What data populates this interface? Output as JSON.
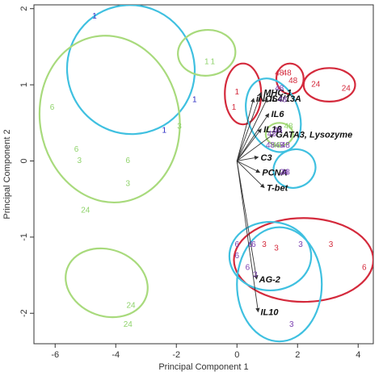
{
  "chart_data": {
    "type": "scatter",
    "title": "",
    "xlabel": "Principal Component 1",
    "ylabel": "Principal Component 2",
    "xlim": [
      -6.7,
      4.5
    ],
    "ylim": [
      -2.4,
      2.05
    ],
    "xticks": [
      -6,
      -4,
      -2,
      0,
      2,
      4
    ],
    "yticks": [
      -2,
      -1,
      0,
      1,
      2
    ],
    "grid": false,
    "colors": {
      "1": "#2b2bc4",
      "3": "#8fd36b",
      "6": "#8fd36b",
      "24": "#8fd36b",
      "48": "#7a3fb0",
      "red": "#d42a3c",
      "cyan": "#3fc0e0",
      "green": "#a8da7c",
      "arrow": "#333333"
    },
    "points": [
      {
        "x": -4.7,
        "y": 1.9,
        "label": "1",
        "color": "#2b2bc4"
      },
      {
        "x": -1.4,
        "y": 0.8,
        "label": "1",
        "color": "#2b2bc4"
      },
      {
        "x": -2.4,
        "y": 0.4,
        "label": "1",
        "color": "#2b2bc4"
      },
      {
        "x": -1.0,
        "y": 1.3,
        "label": "1",
        "color": "#8fd36b"
      },
      {
        "x": -0.8,
        "y": 1.3,
        "label": "1",
        "color": "#8fd36b"
      },
      {
        "x": -6.1,
        "y": 0.7,
        "label": "6",
        "color": "#8fd36b"
      },
      {
        "x": -1.9,
        "y": 0.45,
        "label": "3",
        "color": "#8fd36b"
      },
      {
        "x": -5.3,
        "y": 0.15,
        "label": "6",
        "color": "#8fd36b"
      },
      {
        "x": -5.2,
        "y": 0.0,
        "label": "3",
        "color": "#8fd36b"
      },
      {
        "x": -3.6,
        "y": 0.0,
        "label": "6",
        "color": "#8fd36b"
      },
      {
        "x": -3.6,
        "y": -0.3,
        "label": "3",
        "color": "#8fd36b"
      },
      {
        "x": -5.0,
        "y": -0.65,
        "label": "24",
        "color": "#8fd36b"
      },
      {
        "x": -3.5,
        "y": -1.9,
        "label": "24",
        "color": "#8fd36b"
      },
      {
        "x": -3.6,
        "y": -2.15,
        "label": "24",
        "color": "#8fd36b"
      },
      {
        "x": 0.0,
        "y": 0.9,
        "label": "1",
        "color": "#d42a3c"
      },
      {
        "x": -0.1,
        "y": 0.7,
        "label": "1",
        "color": "#d42a3c"
      },
      {
        "x": 1.4,
        "y": 1.15,
        "label": "48",
        "color": "#d42a3c"
      },
      {
        "x": 1.65,
        "y": 1.15,
        "label": "48",
        "color": "#d42a3c"
      },
      {
        "x": 1.85,
        "y": 1.05,
        "label": "48",
        "color": "#d42a3c"
      },
      {
        "x": 2.6,
        "y": 1.0,
        "label": "24",
        "color": "#d42a3c"
      },
      {
        "x": 3.6,
        "y": 0.95,
        "label": "24",
        "color": "#d42a3c"
      },
      {
        "x": 1.4,
        "y": 0.95,
        "label": "48",
        "color": "#7a3fb0"
      },
      {
        "x": 1.5,
        "y": 0.8,
        "label": "48",
        "color": "#7a3fb0"
      },
      {
        "x": 1.35,
        "y": 0.4,
        "label": "48",
        "color": "#7a3fb0"
      },
      {
        "x": 1.4,
        "y": 0.2,
        "label": "48",
        "color": "#7a3fb0"
      },
      {
        "x": 1.15,
        "y": 0.35,
        "label": "48",
        "color": "#7a3fb0"
      },
      {
        "x": 1.7,
        "y": 0.45,
        "label": "48",
        "color": "#8fd36b"
      },
      {
        "x": 1.3,
        "y": 0.2,
        "label": "48",
        "color": "#8fd36b"
      },
      {
        "x": 1.1,
        "y": 0.2,
        "label": "48",
        "color": "#7a3fb0"
      },
      {
        "x": 1.6,
        "y": 0.2,
        "label": "48",
        "color": "#7a3fb0"
      },
      {
        "x": 1.6,
        "y": -0.15,
        "label": "48",
        "color": "#7a3fb0"
      },
      {
        "x": 1.55,
        "y": -0.15,
        "label": "24",
        "color": "#7a3fb0"
      },
      {
        "x": 0.0,
        "y": -1.1,
        "label": "6",
        "color": "#7a3fb0"
      },
      {
        "x": 0.45,
        "y": -1.1,
        "label": "6",
        "color": "#7a3fb0"
      },
      {
        "x": 0.55,
        "y": -1.1,
        "label": "6",
        "color": "#7a3fb0"
      },
      {
        "x": 0.9,
        "y": -1.1,
        "label": "3",
        "color": "#d42a3c"
      },
      {
        "x": 1.3,
        "y": -1.15,
        "label": "3",
        "color": "#d42a3c"
      },
      {
        "x": 2.1,
        "y": -1.1,
        "label": "3",
        "color": "#7a3fb0"
      },
      {
        "x": 3.1,
        "y": -1.1,
        "label": "3",
        "color": "#d42a3c"
      },
      {
        "x": 0.0,
        "y": -1.25,
        "label": "6",
        "color": "#7a3fb0"
      },
      {
        "x": 4.2,
        "y": -1.4,
        "label": "6",
        "color": "#d42a3c"
      },
      {
        "x": 0.35,
        "y": -1.4,
        "label": "6",
        "color": "#7a3fb0"
      },
      {
        "x": 0.6,
        "y": -1.5,
        "label": "3",
        "color": "#7a3fb0"
      },
      {
        "x": 1.8,
        "y": -2.15,
        "label": "3",
        "color": "#7a3fb0"
      }
    ],
    "vectors": [
      {
        "label": "iNOS",
        "x": 0.55,
        "y": 0.82
      },
      {
        "label": "MHC-1",
        "x": 0.8,
        "y": 0.9
      },
      {
        "label": "IL4/13A",
        "x": 1.0,
        "y": 0.82
      },
      {
        "label": "IL6",
        "x": 1.05,
        "y": 0.62
      },
      {
        "label": "IL1β",
        "x": 0.8,
        "y": 0.42
      },
      {
        "label": "GATA3, Lysozyme",
        "x": 1.2,
        "y": 0.35
      },
      {
        "label": "C3",
        "x": 0.7,
        "y": 0.05
      },
      {
        "label": "PCNA",
        "x": 0.75,
        "y": -0.15
      },
      {
        "label": "T-bet",
        "x": 0.9,
        "y": -0.35
      },
      {
        "label": "AG-2",
        "x": 0.65,
        "y": -1.55
      },
      {
        "label": "IL10",
        "x": 0.7,
        "y": -1.98
      }
    ],
    "ellipses": [
      {
        "cx": -3.5,
        "cy": 1.2,
        "rx": 2.1,
        "ry": 0.85,
        "angle": -25,
        "color": "#3fc0e0"
      },
      {
        "cx": -1.0,
        "cy": 1.42,
        "rx": 0.95,
        "ry": 0.3,
        "angle": -5,
        "color": "#a8da7c"
      },
      {
        "cx": -4.2,
        "cy": 0.55,
        "rx": 2.3,
        "ry": 1.1,
        "angle": -10,
        "color": "#a8da7c"
      },
      {
        "cx": -4.3,
        "cy": -1.6,
        "rx": 1.1,
        "ry": 0.55,
        "angle": -70,
        "color": "#a8da7c"
      },
      {
        "cx": 0.2,
        "cy": 0.88,
        "rx": 0.6,
        "ry": 0.4,
        "angle": 0,
        "color": "#d42a3c"
      },
      {
        "cx": 1.75,
        "cy": 1.08,
        "rx": 0.45,
        "ry": 0.2,
        "angle": 0,
        "color": "#d42a3c"
      },
      {
        "cx": 3.05,
        "cy": 1.0,
        "rx": 0.85,
        "ry": 0.22,
        "angle": 0,
        "color": "#d42a3c"
      },
      {
        "cx": 1.2,
        "cy": 0.6,
        "rx": 0.85,
        "ry": 0.5,
        "angle": -20,
        "color": "#3fc0e0"
      },
      {
        "cx": 1.4,
        "cy": 0.35,
        "rx": 0.45,
        "ry": 0.15,
        "angle": 0,
        "color": "#a8da7c"
      },
      {
        "cx": 1.9,
        "cy": -0.1,
        "rx": 0.7,
        "ry": 0.25,
        "angle": -20,
        "color": "#3fc0e0"
      },
      {
        "cx": 2.2,
        "cy": -1.3,
        "rx": 2.3,
        "ry": 0.55,
        "angle": 0,
        "color": "#d42a3c"
      },
      {
        "cx": 1.1,
        "cy": -1.25,
        "rx": 1.35,
        "ry": 0.45,
        "angle": 0,
        "color": "#3fc0e0"
      },
      {
        "cx": 1.4,
        "cy": -1.62,
        "rx": 1.4,
        "ry": 0.75,
        "angle": 0,
        "color": "#3fc0e0"
      }
    ]
  }
}
